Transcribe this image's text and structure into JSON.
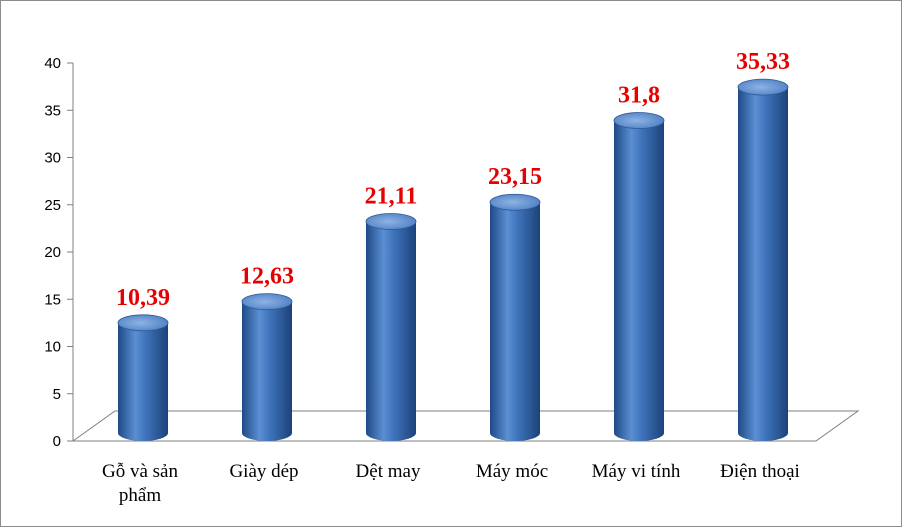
{
  "chart_data": {
    "type": "bar",
    "style": "3d-cylinder",
    "categories": [
      "Gỗ và sản phẩm",
      "Giày dép",
      "Dệt may",
      "Máy móc",
      "Máy vi tính",
      "Điện thoại"
    ],
    "category_lines": [
      [
        "Gỗ và sản",
        "phẩm"
      ],
      [
        "Giày dép"
      ],
      [
        "Dệt may"
      ],
      [
        "Máy móc"
      ],
      [
        "Máy vi tính"
      ],
      [
        "Điện thoại"
      ]
    ],
    "values": [
      10.39,
      12.63,
      21.11,
      23.15,
      31.8,
      35.33
    ],
    "value_labels": [
      "10,39",
      "12,63",
      "21,11",
      "23,15",
      "31,8",
      "35,33"
    ],
    "yticks": [
      0,
      5,
      10,
      15,
      20,
      25,
      30,
      35,
      40
    ],
    "ylim": [
      0,
      40
    ],
    "title": "",
    "xlabel": "",
    "ylabel": "",
    "grid": false,
    "legend": "none",
    "colors": {
      "bar": "#3a6fb5",
      "bar_dark": "#1f4b87",
      "bar_light": "#7fa6dc",
      "value_label": "#e60000"
    }
  }
}
